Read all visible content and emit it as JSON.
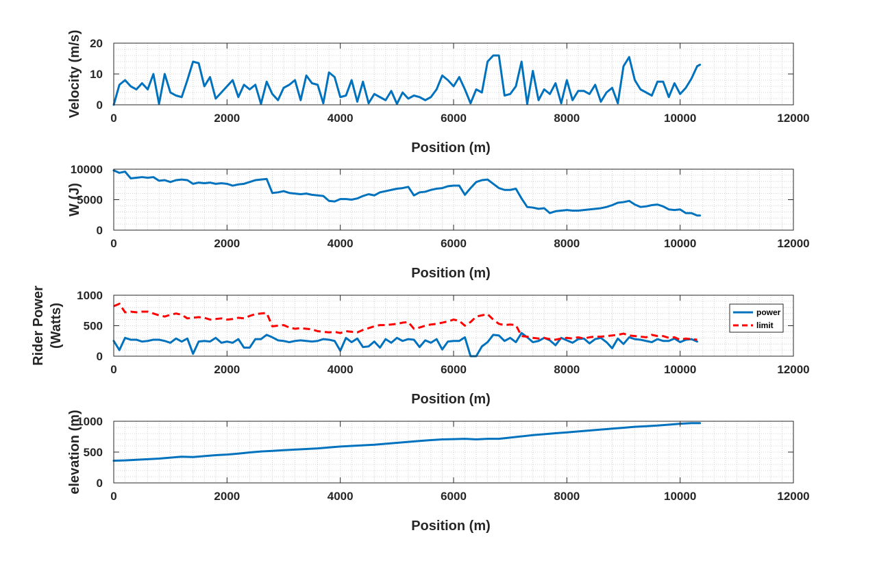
{
  "chart_data": [
    {
      "type": "line",
      "ylabel": [
        "Velocity (m/s)"
      ],
      "xlabel": "Position (m)",
      "xlim": [
        0,
        12000
      ],
      "ylim": [
        0,
        20
      ],
      "xticks": [
        "0",
        "2000",
        "4000",
        "6000",
        "8000",
        "10000",
        "12000"
      ],
      "yticks": [
        "0",
        "10",
        "20"
      ],
      "grid": "minor dotted",
      "series": [
        {
          "name": "velocity",
          "color": "#0072BD",
          "x": [
            0,
            100,
            200,
            300,
            400,
            500,
            600,
            700,
            800,
            900,
            1000,
            1100,
            1200,
            1300,
            1400,
            1500,
            1600,
            1700,
            1800,
            1900,
            2000,
            2100,
            2200,
            2300,
            2400,
            2500,
            2600,
            2700,
            2800,
            2900,
            3000,
            3100,
            3200,
            3300,
            3400,
            3500,
            3600,
            3700,
            3800,
            3900,
            4000,
            4100,
            4200,
            4300,
            4400,
            4500,
            4600,
            4700,
            4800,
            4900,
            5000,
            5100,
            5200,
            5300,
            5400,
            5500,
            5600,
            5700,
            5800,
            5900,
            6000,
            6100,
            6200,
            6300,
            6400,
            6500,
            6600,
            6700,
            6800,
            6900,
            7000,
            7100,
            7200,
            7300,
            7400,
            7500,
            7600,
            7700,
            7800,
            7900,
            8000,
            8100,
            8200,
            8300,
            8400,
            8500,
            8600,
            8700,
            8800,
            8900,
            9000,
            9100,
            9200,
            9300,
            9400,
            9500,
            9600,
            9700,
            9800,
            9900,
            10000,
            10100,
            10200,
            10300,
            10350
          ],
          "y": [
            0,
            6.5,
            8,
            6,
            5,
            7,
            5,
            10,
            0.3,
            10,
            4,
            3,
            2.5,
            8,
            14,
            13.5,
            6,
            9,
            2,
            4,
            6,
            8,
            2.5,
            6.5,
            5,
            6.5,
            0.3,
            7.5,
            3.5,
            1.5,
            5.5,
            6.5,
            8,
            1.5,
            9.5,
            7,
            6.5,
            0.5,
            10.5,
            9,
            2.5,
            3,
            8,
            1,
            7.5,
            0.5,
            3.5,
            2.5,
            1.5,
            4.5,
            0.3,
            4,
            2,
            3,
            2.5,
            1.5,
            2.5,
            5,
            9.5,
            8,
            6,
            9,
            5,
            0.5,
            5,
            4,
            14,
            16,
            16,
            3,
            3.5,
            6,
            14,
            0.3,
            11,
            1.5,
            5,
            3.5,
            7,
            0.5,
            8,
            1.5,
            4.5,
            4.5,
            3.5,
            6.5,
            1,
            4,
            5.5,
            0.5,
            12.5,
            15.5,
            8,
            5,
            4,
            3,
            7.5,
            7.5,
            2.5,
            7,
            3.5,
            5.5,
            8.5,
            12.5,
            13
          ]
        }
      ]
    },
    {
      "type": "line",
      "ylabel": [
        "W (J)"
      ],
      "xlabel": "Position (m)",
      "xlim": [
        0,
        12000
      ],
      "ylim": [
        0,
        10000
      ],
      "xticks": [
        "0",
        "2000",
        "4000",
        "6000",
        "8000",
        "10000",
        "12000"
      ],
      "yticks": [
        "0",
        "5000",
        "10000"
      ],
      "grid": "minor dotted",
      "series": [
        {
          "name": "W",
          "color": "#0072BD",
          "x": [
            0,
            100,
            200,
            300,
            400,
            500,
            600,
            700,
            800,
            900,
            1000,
            1100,
            1200,
            1300,
            1400,
            1500,
            1600,
            1700,
            1800,
            1900,
            2000,
            2100,
            2200,
            2300,
            2400,
            2500,
            2600,
            2700,
            2800,
            2900,
            3000,
            3100,
            3200,
            3300,
            3400,
            3500,
            3600,
            3700,
            3800,
            3900,
            4000,
            4100,
            4200,
            4300,
            4400,
            4500,
            4600,
            4700,
            4800,
            4900,
            5000,
            5100,
            5200,
            5300,
            5400,
            5500,
            5600,
            5700,
            5800,
            5900,
            6000,
            6100,
            6200,
            6300,
            6400,
            6500,
            6600,
            6700,
            6800,
            6900,
            7000,
            7100,
            7200,
            7300,
            7400,
            7500,
            7600,
            7700,
            7800,
            7900,
            8000,
            8100,
            8200,
            8300,
            8400,
            8500,
            8600,
            8700,
            8800,
            8900,
            9000,
            9100,
            9200,
            9300,
            9400,
            9500,
            9600,
            9700,
            9800,
            9900,
            10000,
            10100,
            10200,
            10300,
            10350
          ],
          "y": [
            9800,
            9400,
            9600,
            8500,
            8600,
            8700,
            8600,
            8700,
            8100,
            8200,
            7900,
            8200,
            8300,
            8200,
            7600,
            7800,
            7700,
            7800,
            7600,
            7700,
            7600,
            7300,
            7500,
            7600,
            7900,
            8200,
            8300,
            8400,
            6100,
            6200,
            6400,
            6100,
            6000,
            5900,
            6000,
            5800,
            5700,
            5600,
            4800,
            4700,
            5100,
            5100,
            5000,
            5200,
            5600,
            5900,
            5700,
            6200,
            6400,
            6600,
            6800,
            6900,
            7100,
            5700,
            6200,
            6300,
            6600,
            6800,
            6900,
            7200,
            7300,
            7300,
            5800,
            6900,
            7900,
            8200,
            8300,
            7600,
            6900,
            6600,
            6600,
            6800,
            5200,
            3800,
            3700,
            3500,
            3600,
            2800,
            3100,
            3200,
            3300,
            3200,
            3200,
            3300,
            3400,
            3500,
            3600,
            3800,
            4100,
            4500,
            4600,
            4800,
            4200,
            3800,
            3900,
            4100,
            4200,
            3900,
            3400,
            3300,
            3400,
            2800,
            2800,
            2400,
            2400
          ]
        }
      ]
    },
    {
      "type": "line",
      "ylabel": [
        "Rider Power",
        "(Watts)"
      ],
      "xlabel": "Position (m)",
      "xlim": [
        0,
        12000
      ],
      "ylim": [
        0,
        1000
      ],
      "xticks": [
        "0",
        "2000",
        "4000",
        "6000",
        "8000",
        "10000",
        "12000"
      ],
      "yticks": [
        "0",
        "500",
        "1000"
      ],
      "grid": "minor dotted",
      "legend": {
        "position": "right",
        "entries": [
          "power",
          "limit"
        ]
      },
      "series": [
        {
          "name": "power",
          "color": "#0072BD",
          "style": "solid",
          "x": [
            0,
            100,
            200,
            300,
            400,
            500,
            600,
            700,
            800,
            900,
            1000,
            1100,
            1200,
            1300,
            1400,
            1500,
            1600,
            1700,
            1800,
            1900,
            2000,
            2100,
            2200,
            2300,
            2400,
            2500,
            2600,
            2700,
            2800,
            2900,
            3000,
            3100,
            3200,
            3300,
            3400,
            3500,
            3600,
            3700,
            3800,
            3900,
            4000,
            4100,
            4200,
            4300,
            4400,
            4500,
            4600,
            4700,
            4800,
            4900,
            5000,
            5100,
            5200,
            5300,
            5400,
            5500,
            5600,
            5700,
            5800,
            5900,
            6000,
            6100,
            6200,
            6300,
            6400,
            6500,
            6600,
            6700,
            6800,
            6900,
            7000,
            7100,
            7200,
            7300,
            7400,
            7500,
            7600,
            7700,
            7800,
            7900,
            8000,
            8100,
            8200,
            8300,
            8400,
            8500,
            8600,
            8700,
            8800,
            8900,
            9000,
            9100,
            9200,
            9300,
            9400,
            9500,
            9600,
            9700,
            9800,
            9900,
            10000,
            10100,
            10200,
            10300
          ],
          "y": [
            250,
            100,
            300,
            270,
            270,
            240,
            250,
            270,
            270,
            250,
            220,
            290,
            240,
            290,
            40,
            240,
            250,
            240,
            300,
            220,
            240,
            220,
            280,
            140,
            140,
            280,
            280,
            350,
            310,
            260,
            250,
            230,
            250,
            260,
            250,
            240,
            250,
            280,
            270,
            250,
            90,
            300,
            230,
            290,
            150,
            160,
            240,
            140,
            280,
            220,
            300,
            250,
            280,
            270,
            150,
            260,
            220,
            280,
            110,
            240,
            250,
            250,
            310,
            0,
            0,
            160,
            230,
            350,
            340,
            250,
            300,
            230,
            380,
            310,
            230,
            250,
            300,
            260,
            180,
            300,
            260,
            220,
            280,
            290,
            210,
            280,
            300,
            230,
            130,
            290,
            200,
            310,
            280,
            270,
            250,
            230,
            280,
            250,
            250,
            290,
            230,
            270,
            280,
            240
          ]
        },
        {
          "name": "limit",
          "color": "#FF0000",
          "style": "dashed",
          "x": [
            0,
            100,
            200,
            300,
            400,
            500,
            600,
            700,
            800,
            900,
            1000,
            1100,
            1200,
            1300,
            1400,
            1500,
            1600,
            1700,
            1800,
            1900,
            2000,
            2100,
            2200,
            2300,
            2400,
            2500,
            2600,
            2700,
            2800,
            2900,
            3000,
            3100,
            3200,
            3300,
            3400,
            3500,
            3600,
            3700,
            3800,
            3900,
            4000,
            4100,
            4200,
            4300,
            4400,
            4500,
            4600,
            4700,
            4800,
            4900,
            5000,
            5100,
            5200,
            5300,
            5400,
            5500,
            5600,
            5700,
            5800,
            5900,
            6000,
            6100,
            6200,
            6300,
            6400,
            6500,
            6600,
            6700,
            6800,
            6900,
            7000,
            7100,
            7200,
            7300,
            7400,
            7500,
            7600,
            7700,
            7800,
            7900,
            8000,
            8100,
            8200,
            8300,
            8400,
            8500,
            8600,
            8700,
            8800,
            8900,
            9000,
            9100,
            9200,
            9300,
            9400,
            9500,
            9600,
            9700,
            9800,
            9900,
            10000,
            10100,
            10200,
            10300
          ],
          "y": [
            820,
            860,
            720,
            730,
            720,
            730,
            730,
            700,
            670,
            650,
            680,
            700,
            680,
            620,
            630,
            640,
            630,
            600,
            610,
            620,
            600,
            610,
            630,
            620,
            660,
            690,
            700,
            710,
            490,
            500,
            510,
            470,
            450,
            460,
            450,
            440,
            410,
            400,
            390,
            400,
            380,
            410,
            400,
            390,
            430,
            460,
            490,
            510,
            510,
            520,
            530,
            550,
            560,
            450,
            470,
            500,
            520,
            530,
            550,
            570,
            600,
            580,
            500,
            560,
            650,
            670,
            690,
            600,
            530,
            510,
            520,
            510,
            330,
            320,
            300,
            290,
            300,
            280,
            270,
            290,
            300,
            290,
            310,
            290,
            310,
            320,
            320,
            330,
            340,
            350,
            370,
            340,
            330,
            320,
            310,
            350,
            330,
            330,
            300,
            310,
            270,
            290,
            280,
            270
          ]
        }
      ]
    },
    {
      "type": "line",
      "ylabel": [
        "elevation (m)"
      ],
      "xlabel": "Position (m)",
      "xlim": [
        0,
        12000
      ],
      "ylim": [
        0,
        1000
      ],
      "xticks": [
        "0",
        "2000",
        "4000",
        "6000",
        "8000",
        "10000",
        "12000"
      ],
      "yticks": [
        "0",
        "500",
        "1000"
      ],
      "grid": "minor dotted",
      "series": [
        {
          "name": "elevation",
          "color": "#0072BD",
          "x": [
            0,
            200,
            400,
            600,
            800,
            1000,
            1200,
            1400,
            1600,
            1800,
            2000,
            2200,
            2400,
            2600,
            2800,
            3000,
            3200,
            3400,
            3600,
            3800,
            4000,
            4200,
            4400,
            4600,
            4800,
            5000,
            5200,
            5400,
            5600,
            5800,
            6000,
            6200,
            6400,
            6600,
            6800,
            7000,
            7200,
            7400,
            7600,
            7800,
            8000,
            8200,
            8400,
            8600,
            8800,
            9000,
            9200,
            9400,
            9600,
            9800,
            10000,
            10200,
            10350
          ],
          "y": [
            360,
            365,
            375,
            385,
            395,
            410,
            425,
            420,
            435,
            450,
            460,
            475,
            495,
            510,
            520,
            530,
            540,
            550,
            560,
            575,
            590,
            600,
            610,
            620,
            635,
            650,
            665,
            680,
            695,
            705,
            710,
            715,
            705,
            715,
            715,
            735,
            755,
            775,
            790,
            805,
            820,
            835,
            850,
            865,
            880,
            895,
            910,
            920,
            930,
            945,
            960,
            970,
            970
          ]
        }
      ]
    }
  ]
}
